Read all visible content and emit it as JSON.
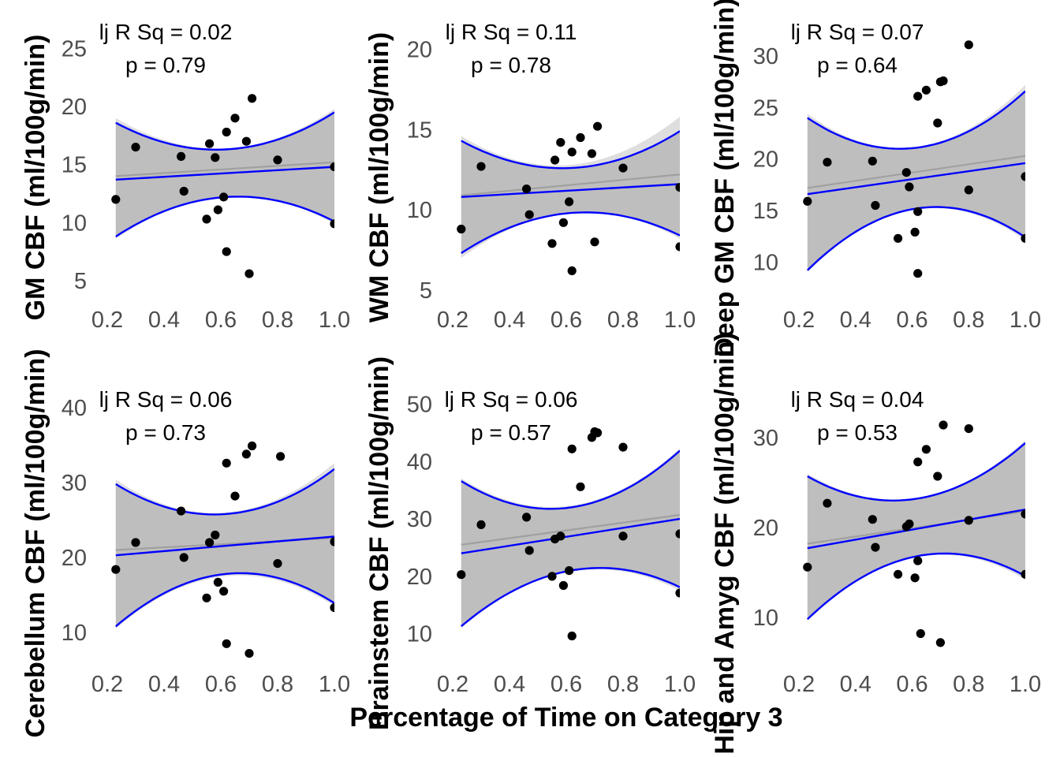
{
  "x_axis_title": "Percentage of Time on Category 3",
  "colors": {
    "points": "#000000",
    "fit_blue": "#0000ff",
    "band_outer": "#dedede",
    "band_inner": "#bebebe",
    "gray_fit": "#a0a0a0",
    "tick_text": "#4d4d4d"
  },
  "chart_data": [
    {
      "type": "scatter",
      "ylabel": "GM CBF (ml/100g/min)",
      "annotation": {
        "adj_r_sq": "lj R Sq =  0.02",
        "p": "p =  0.79"
      },
      "xlim": [
        0.2,
        1.0
      ],
      "ylim": [
        3.5,
        27
      ],
      "xticks": [
        "0.2",
        "0.4",
        "0.6",
        "0.8",
        "1.0"
      ],
      "yticks": [
        "5",
        "10",
        "15",
        "20",
        "25"
      ],
      "x": [
        0.23,
        0.3,
        0.46,
        0.47,
        0.55,
        0.56,
        0.58,
        0.59,
        0.61,
        0.62,
        0.62,
        0.65,
        0.69,
        0.7,
        0.71,
        0.8,
        1.0,
        1.0
      ],
      "y": [
        12.0,
        16.5,
        15.7,
        12.7,
        10.3,
        16.8,
        15.6,
        11.1,
        12.2,
        17.8,
        7.5,
        19.0,
        17.0,
        5.6,
        20.7,
        15.4,
        14.8,
        9.9
      ],
      "fit_blue": [
        13.7,
        14.8
      ],
      "ci_blue": {
        "lower": [
          8.8,
          12.2,
          10.1
        ],
        "upper": [
          18.6,
          16.3,
          19.5
        ]
      },
      "fit_gray": [
        14.0,
        15.2
      ],
      "ci_gray": {
        "lower": [
          8.6,
          12.2,
          9.9
        ],
        "upper": [
          19.0,
          16.4,
          19.8
        ]
      }
    },
    {
      "type": "scatter",
      "ylabel": "WM CBF (ml/100g/min)",
      "annotation": {
        "adj_r_sq": "lj R Sq =  0.11",
        "p": "p =  0.78"
      },
      "xlim": [
        0.2,
        1.0
      ],
      "ylim": [
        4.5,
        21.5
      ],
      "xticks": [
        "0.2",
        "0.4",
        "0.6",
        "0.8",
        "1.0"
      ],
      "yticks": [
        "5",
        "10",
        "15",
        "20"
      ],
      "x": [
        0.23,
        0.3,
        0.46,
        0.47,
        0.55,
        0.56,
        0.58,
        0.59,
        0.61,
        0.62,
        0.62,
        0.65,
        0.69,
        0.7,
        0.71,
        0.8,
        1.0,
        1.0
      ],
      "y": [
        8.8,
        12.7,
        11.3,
        9.7,
        7.9,
        13.1,
        14.2,
        9.2,
        10.5,
        13.6,
        6.2,
        14.5,
        13.5,
        8.0,
        15.2,
        12.6,
        11.4,
        7.7
      ],
      "fit_blue": [
        10.8,
        11.6
      ],
      "ci_blue": {
        "lower": [
          7.3,
          9.8,
          8.4
        ],
        "upper": [
          14.3,
          12.6,
          14.9
        ]
      },
      "fit_gray": [
        10.9,
        12.2
      ],
      "ci_gray": {
        "lower": [
          7.0,
          9.8,
          8.2
        ],
        "upper": [
          14.6,
          12.8,
          15.8
        ]
      }
    },
    {
      "type": "scatter",
      "ylabel": "Deep GM CBF (ml/100g/min)",
      "annotation": {
        "adj_r_sq": "lj R Sq =  0.07",
        "p": "p =  0.64"
      },
      "xlim": [
        0.2,
        1.0
      ],
      "ylim": [
        6.5,
        33
      ],
      "xticks": [
        "0.2",
        "0.4",
        "0.6",
        "0.8",
        "1.0"
      ],
      "yticks": [
        "10",
        "15",
        "20",
        "25",
        "30"
      ],
      "x": [
        0.23,
        0.3,
        0.46,
        0.47,
        0.55,
        0.58,
        0.59,
        0.61,
        0.62,
        0.62,
        0.62,
        0.65,
        0.69,
        0.7,
        0.71,
        0.8,
        0.8,
        1.0,
        1.0
      ],
      "y": [
        15.9,
        19.7,
        19.8,
        15.5,
        12.3,
        18.7,
        17.3,
        12.9,
        14.9,
        26.1,
        8.9,
        26.7,
        23.5,
        27.5,
        27.6,
        31.1,
        17.0,
        18.3,
        12.3
      ],
      "fit_blue": [
        16.6,
        19.6
      ],
      "ci_blue": {
        "lower": [
          9.2,
          15.2,
          12.4
        ],
        "upper": [
          24.0,
          21.1,
          26.6
        ]
      },
      "fit_gray": [
        17.2,
        20.3
      ],
      "ci_gray": {
        "lower": [
          9.0,
          15.1,
          12.1
        ],
        "upper": [
          24.4,
          21.2,
          27.2
        ]
      }
    },
    {
      "type": "scatter",
      "ylabel": "Cerebellum CBF (ml/100g/min)",
      "annotation": {
        "adj_r_sq": "lj R Sq =  0.06",
        "p": "p =  0.73"
      },
      "xlim": [
        0.2,
        1.0
      ],
      "ylim": [
        6,
        42
      ],
      "xticks": [
        "0.2",
        "0.4",
        "0.6",
        "0.8",
        "1.0"
      ],
      "yticks": [
        "10",
        "20",
        "30",
        "40"
      ],
      "x": [
        0.23,
        0.3,
        0.46,
        0.47,
        0.55,
        0.56,
        0.58,
        0.59,
        0.61,
        0.62,
        0.62,
        0.65,
        0.69,
        0.7,
        0.71,
        0.8,
        0.81,
        1.0,
        1.0
      ],
      "y": [
        18.4,
        22.0,
        26.2,
        20.0,
        14.6,
        22.0,
        23.0,
        16.7,
        15.5,
        32.6,
        8.5,
        28.2,
        33.8,
        7.2,
        34.9,
        19.2,
        33.5,
        22.1,
        13.3
      ],
      "fit_blue": [
        20.3,
        22.8
      ],
      "ci_blue": {
        "lower": [
          10.8,
          17.8,
          13.9
        ],
        "upper": [
          29.8,
          25.8,
          31.8
        ]
      },
      "fit_gray": [
        21.0,
        22.6
      ],
      "ci_gray": {
        "lower": [
          10.5,
          17.5,
          13.5
        ],
        "upper": [
          30.4,
          26.0,
          32.6
        ]
      }
    },
    {
      "type": "scatter",
      "ylabel": "Brainstem CBF (ml/100g/min)",
      "annotation": {
        "adj_r_sq": "lj R Sq =  0.06",
        "p": "p =  0.57"
      },
      "xlim": [
        0.2,
        1.0
      ],
      "ylim": [
        5,
        52
      ],
      "xticks": [
        "0.2",
        "0.4",
        "0.6",
        "0.8",
        "1.0"
      ],
      "yticks": [
        "10",
        "20",
        "30",
        "40",
        "50"
      ],
      "x": [
        0.23,
        0.3,
        0.46,
        0.47,
        0.55,
        0.56,
        0.58,
        0.59,
        0.61,
        0.62,
        0.62,
        0.65,
        0.69,
        0.7,
        0.71,
        0.8,
        0.8,
        1.0,
        1.0
      ],
      "y": [
        20.3,
        29.0,
        30.3,
        24.5,
        20.0,
        26.5,
        27.0,
        18.4,
        21.0,
        42.2,
        9.6,
        35.6,
        44.2,
        45.2,
        45.0,
        42.5,
        27.0,
        27.4,
        17.1
      ],
      "fit_blue": [
        24.0,
        30.0
      ],
      "ci_blue": {
        "lower": [
          11.3,
          21.0,
          18.1
        ],
        "upper": [
          36.6,
          32.0,
          41.9
        ]
      },
      "fit_gray": [
        25.5,
        30.7
      ],
      "ci_gray": {
        "lower": [
          11.0,
          20.8,
          17.5
        ],
        "upper": [
          37.1,
          32.3,
          42.3
        ]
      }
    },
    {
      "type": "scatter",
      "ylabel": "Hip and Amyg CBF (ml/100g/min)",
      "annotation": {
        "adj_r_sq": "lj R Sq =  0.04",
        "p": "p =  0.53"
      },
      "xlim": [
        0.2,
        1.0
      ],
      "ylim": [
        5,
        35
      ],
      "xticks": [
        "0.2",
        "0.4",
        "0.6",
        "0.8",
        "1.0"
      ],
      "yticks": [
        "10",
        "20",
        "30"
      ],
      "x": [
        0.23,
        0.3,
        0.46,
        0.47,
        0.55,
        0.58,
        0.59,
        0.61,
        0.62,
        0.62,
        0.63,
        0.65,
        0.69,
        0.7,
        0.71,
        0.8,
        0.8,
        1.0,
        1.0
      ],
      "y": [
        15.6,
        22.7,
        20.9,
        17.8,
        14.8,
        20.1,
        20.4,
        14.4,
        16.3,
        27.3,
        8.2,
        28.7,
        25.7,
        7.2,
        31.4,
        31.0,
        20.8,
        21.5,
        14.8
      ],
      "fit_blue": [
        17.7,
        22.0
      ],
      "ci_blue": {
        "lower": [
          9.8,
          16.8,
          14.6
        ],
        "upper": [
          25.7,
          23.2,
          29.4
        ]
      },
      "fit_gray": [
        18.2,
        21.8
      ],
      "ci_gray": {
        "lower": [
          9.6,
          16.7,
          14.2
        ],
        "upper": [
          26.0,
          23.3,
          29.7
        ]
      }
    }
  ]
}
